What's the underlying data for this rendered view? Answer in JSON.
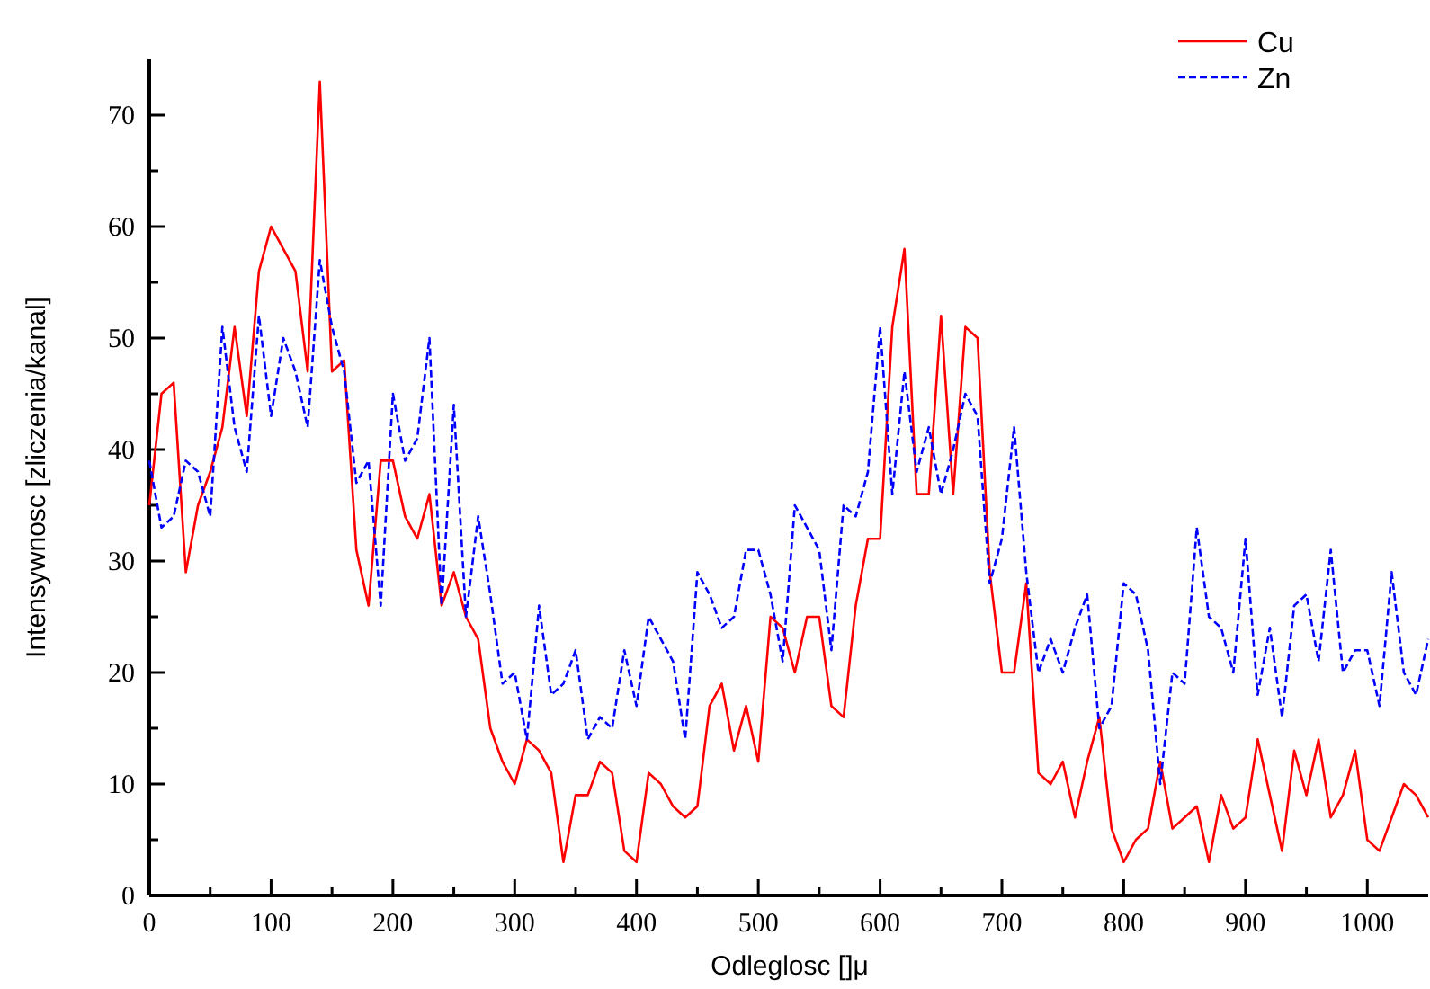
{
  "chart_data": {
    "type": "line",
    "xlabel": "Odleglosc []μ",
    "ylabel": "Intensywnosc [zliczenia/kanal]",
    "x": [
      0,
      10,
      20,
      30,
      40,
      50,
      60,
      70,
      80,
      90,
      100,
      110,
      120,
      130,
      140,
      150,
      160,
      170,
      180,
      190,
      200,
      210,
      220,
      230,
      240,
      250,
      260,
      270,
      280,
      290,
      300,
      310,
      320,
      330,
      340,
      350,
      360,
      370,
      380,
      390,
      400,
      410,
      420,
      430,
      440,
      450,
      460,
      470,
      480,
      490,
      500,
      510,
      520,
      530,
      540,
      550,
      560,
      570,
      580,
      590,
      600,
      610,
      620,
      630,
      640,
      650,
      660,
      670,
      680,
      690,
      700,
      710,
      720,
      730,
      740,
      750,
      760,
      770,
      780,
      790,
      800,
      810,
      820,
      830,
      840,
      850,
      860,
      870,
      880,
      890,
      900,
      910,
      920,
      930,
      940,
      950,
      960,
      970,
      980,
      990,
      1000,
      1010,
      1020,
      1030,
      1040,
      1050
    ],
    "series": [
      {
        "name": "Cu",
        "color": "#ff0000",
        "line_style": "solid",
        "values": [
          35,
          45,
          46,
          29,
          35,
          38,
          42,
          51,
          43,
          56,
          60,
          58,
          56,
          47,
          73,
          47,
          48,
          31,
          26,
          39,
          39,
          34,
          32,
          36,
          26,
          29,
          25,
          23,
          15,
          12,
          10,
          14,
          13,
          11,
          3,
          9,
          9,
          12,
          11,
          4,
          3,
          11,
          10,
          8,
          7,
          8,
          17,
          19,
          13,
          17,
          12,
          25,
          24,
          20,
          25,
          25,
          17,
          16,
          26,
          32,
          32,
          51,
          58,
          36,
          36,
          52,
          36,
          51,
          50,
          29,
          20,
          20,
          28,
          11,
          10,
          12,
          7,
          12,
          16,
          6,
          3,
          5,
          6,
          12,
          6,
          7,
          8,
          3,
          9,
          6,
          7,
          14,
          9,
          4,
          13,
          9,
          14,
          7,
          9,
          13,
          5,
          4,
          7,
          10,
          9,
          7
        ]
      },
      {
        "name": "Zn",
        "color": "#0000ff",
        "line_style": "dashed",
        "values": [
          39,
          33,
          34,
          39,
          38,
          34,
          51,
          42,
          38,
          52,
          43,
          50,
          47,
          42,
          57,
          51,
          47,
          37,
          39,
          26,
          45,
          39,
          41,
          50,
          26,
          44,
          25,
          34,
          27,
          19,
          20,
          14,
          26,
          18,
          19,
          22,
          14,
          16,
          15,
          22,
          17,
          25,
          23,
          21,
          14,
          29,
          27,
          24,
          25,
          31,
          31,
          27,
          21,
          35,
          33,
          31,
          22,
          35,
          34,
          38,
          51,
          36,
          47,
          38,
          42,
          36,
          40,
          45,
          43,
          28,
          32,
          42,
          29,
          20,
          23,
          20,
          24,
          27,
          15,
          17,
          28,
          27,
          22,
          10,
          20,
          19,
          33,
          25,
          24,
          20,
          32,
          18,
          24,
          16,
          26,
          27,
          21,
          31,
          20,
          22,
          22,
          17,
          29,
          20,
          18,
          23
        ]
      }
    ],
    "xlim": [
      0,
      1050
    ],
    "xticks": [
      0,
      {
        "value": 50,
        "label": null
      },
      100,
      {
        "value": 150,
        "label": null
      },
      200,
      {
        "value": 250,
        "label": null
      },
      300,
      {
        "value": 350,
        "label": null
      },
      400,
      {
        "value": 450,
        "label": null
      },
      500,
      {
        "value": 550,
        "label": null
      },
      600,
      {
        "value": 650,
        "label": null
      },
      700,
      {
        "value": 750,
        "label": null
      },
      800,
      {
        "value": 850,
        "label": null
      },
      900,
      {
        "value": 950,
        "label": null
      },
      1000
    ],
    "ylim": [
      0,
      75
    ],
    "yticks": [
      0,
      {
        "value": 5,
        "label": null
      },
      10,
      {
        "value": 15,
        "label": null
      },
      20,
      {
        "value": 25,
        "label": null
      },
      30,
      {
        "value": 35,
        "label": null
      },
      40,
      {
        "value": 45,
        "label": null
      },
      50,
      {
        "value": 55,
        "label": null
      },
      60,
      {
        "value": 65,
        "label": null
      },
      70
    ],
    "legend": "top right",
    "grid": false
  }
}
